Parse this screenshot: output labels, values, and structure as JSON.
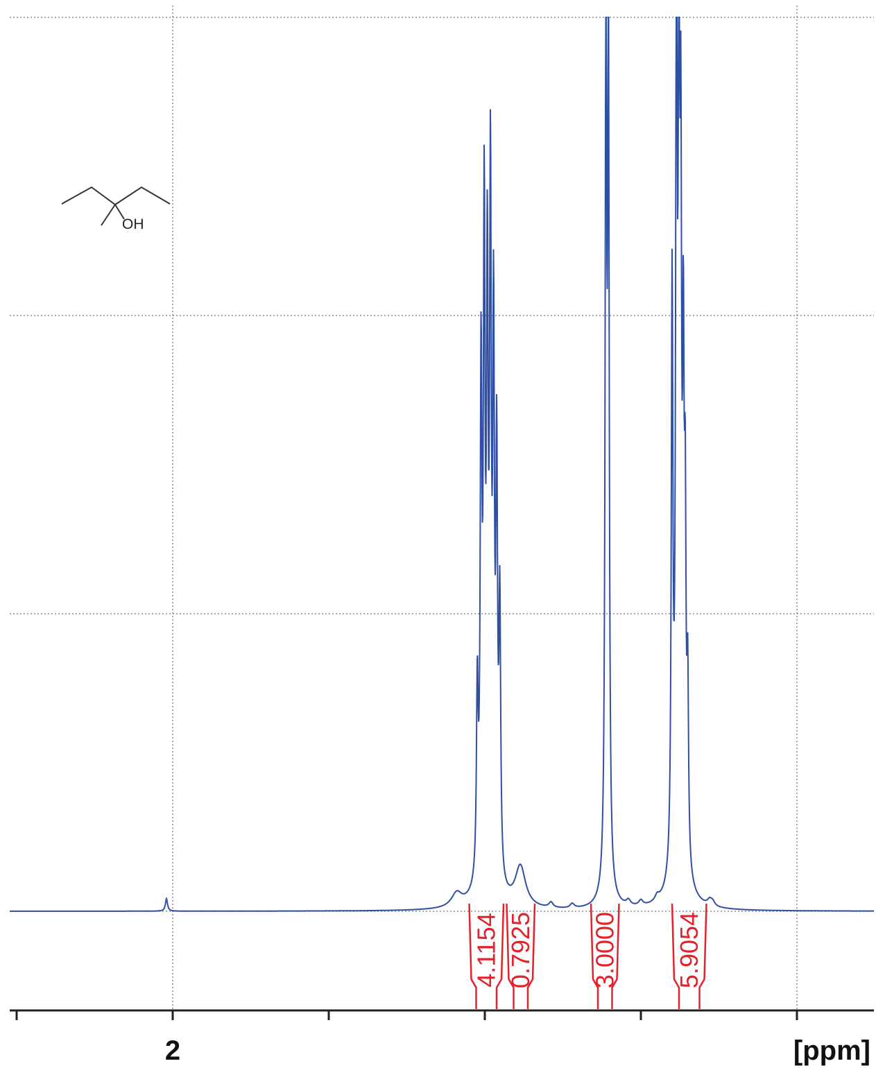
{
  "chart_data": {
    "type": "line",
    "title": "",
    "xlabel": "[ppm]",
    "ylabel": "",
    "x_axis": {
      "reversed": true,
      "min": 0.5,
      "max": 2.1,
      "ticks": [
        2.0,
        1.75,
        1.5,
        1.25,
        1.0,
        0.75
      ],
      "tick_labels": [
        "2"
      ]
    },
    "ylim": [
      0,
      1.0
    ],
    "grid": true,
    "structure_label": "OH",
    "integrals": [
      {
        "label": "4.1154",
        "from": 1.525,
        "to": 1.47
      },
      {
        "label": "0.7925",
        "from": 1.465,
        "to": 1.42
      },
      {
        "label": "3.0000",
        "from": 1.33,
        "to": 1.285
      },
      {
        "label": "5.9054",
        "from": 1.2,
        "to": 1.145
      }
    ],
    "series": [
      {
        "color": "#2f4fa5",
        "peaks": [
          {
            "center": 2.01,
            "height": 0.014,
            "width": 0.002
          },
          {
            "center": 1.545,
            "height": 0.015,
            "width": 0.01
          },
          {
            "center": 1.512,
            "height": 0.21,
            "width": 0.0016
          },
          {
            "center": 1.506,
            "height": 0.55,
            "width": 0.0016
          },
          {
            "center": 1.501,
            "height": 0.7,
            "width": 0.0016
          },
          {
            "center": 1.496,
            "height": 0.62,
            "width": 0.0016
          },
          {
            "center": 1.491,
            "height": 0.73,
            "width": 0.0016
          },
          {
            "center": 1.486,
            "height": 0.58,
            "width": 0.0016
          },
          {
            "center": 1.481,
            "height": 0.45,
            "width": 0.0016
          },
          {
            "center": 1.476,
            "height": 0.3,
            "width": 0.0016
          },
          {
            "center": 1.497,
            "height": 0.018,
            "width": 0.02
          },
          {
            "center": 1.443,
            "height": 0.045,
            "width": 0.01
          },
          {
            "center": 1.394,
            "height": 0.006,
            "width": 0.004
          },
          {
            "center": 1.36,
            "height": 0.005,
            "width": 0.004
          },
          {
            "center": 1.306,
            "height": 0.96,
            "width": 0.0015
          },
          {
            "center": 1.302,
            "height": 0.93,
            "width": 0.0015
          },
          {
            "center": 1.304,
            "height": 0.012,
            "width": 0.012
          },
          {
            "center": 1.27,
            "height": 0.006,
            "width": 0.004
          },
          {
            "center": 1.25,
            "height": 0.006,
            "width": 0.004
          },
          {
            "center": 1.224,
            "height": 0.006,
            "width": 0.004
          },
          {
            "center": 1.2,
            "height": 0.65,
            "width": 0.0015
          },
          {
            "center": 1.193,
            "height": 0.99,
            "width": 0.0015
          },
          {
            "center": 1.189,
            "height": 0.82,
            "width": 0.0015
          },
          {
            "center": 1.186,
            "height": 0.66,
            "width": 0.0015
          },
          {
            "center": 1.182,
            "height": 0.5,
            "width": 0.0015
          },
          {
            "center": 1.179,
            "height": 0.35,
            "width": 0.0015
          },
          {
            "center": 1.175,
            "height": 0.2,
            "width": 0.0015
          },
          {
            "center": 1.189,
            "height": 0.025,
            "width": 0.018
          },
          {
            "center": 1.14,
            "height": 0.006,
            "width": 0.004
          },
          {
            "center": 1.135,
            "height": 0.005,
            "width": 0.004
          }
        ]
      }
    ]
  }
}
